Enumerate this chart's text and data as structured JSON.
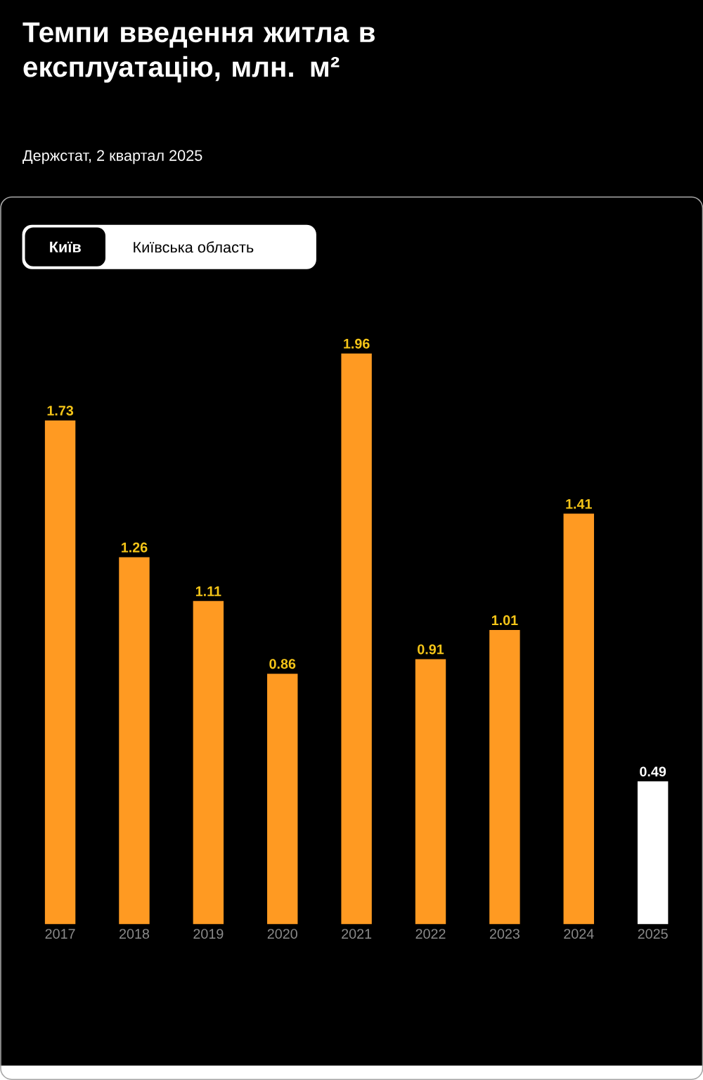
{
  "chart_data": {
    "type": "bar",
    "title": "Темпи введення житла в експлуатацію, млн. м²",
    "subtitle": "Держстат, 2 квартал 2025",
    "annotations": [
      "Київ",
      "Київська область"
    ],
    "categories": [
      "2017",
      "2018",
      "2019",
      "2020",
      "2021",
      "2022",
      "2023",
      "2024",
      "2025"
    ],
    "values": [
      1.73,
      1.26,
      1.11,
      0.86,
      1.96,
      0.91,
      1.01,
      1.41,
      0.49
    ],
    "colors": [
      "#ff9a22",
      "#ff9a22",
      "#ff9a22",
      "#ff9a22",
      "#ff9a22",
      "#ff9a22",
      "#ff9a22",
      "#ff9a22",
      "#ffffff"
    ],
    "data_labels": true
  }
}
